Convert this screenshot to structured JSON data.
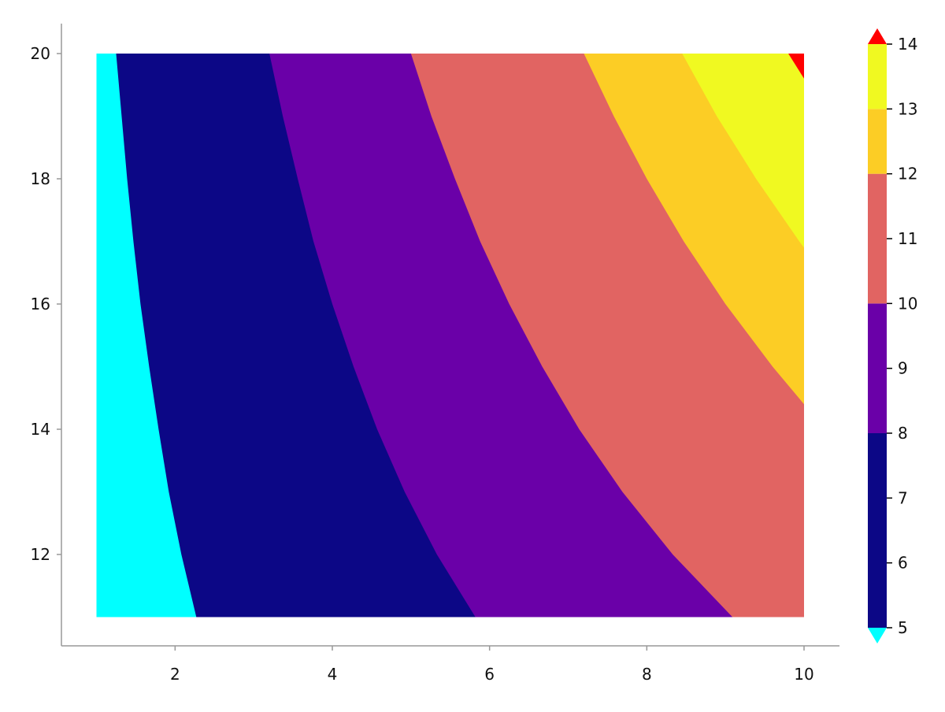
{
  "chart_data": {
    "type": "contour",
    "title": "",
    "xlabel": "",
    "ylabel": "",
    "xlim": [
      1,
      10
    ],
    "ylim": [
      11,
      20
    ],
    "x_ticks": [
      "2",
      "4",
      "6",
      "8",
      "10"
    ],
    "y_ticks": [
      "12",
      "14",
      "16",
      "18",
      "20"
    ],
    "grid": false,
    "levels": [
      5,
      8,
      10,
      12,
      13,
      14
    ],
    "band_colors": {
      "below": "#00ffff",
      "5-8": "#0c0786",
      "8-10": "#6a00a8",
      "10-12": "#e16462",
      "12-13": "#fccd25",
      "13-14": "#f0f921",
      "above": "#ff0000"
    },
    "contours": [
      {
        "level": 5,
        "color": "#0c0786",
        "points": [
          [
            2.27,
            11
          ],
          [
            2.08,
            12
          ],
          [
            1.92,
            13
          ],
          [
            1.79,
            14
          ],
          [
            1.67,
            15
          ],
          [
            1.56,
            16
          ],
          [
            1.47,
            17
          ],
          [
            1.39,
            18
          ],
          [
            1.32,
            19
          ],
          [
            1.25,
            20
          ]
        ]
      },
      {
        "level": 8,
        "color": "#6a00a8",
        "points": [
          [
            5.82,
            11
          ],
          [
            5.33,
            12
          ],
          [
            4.92,
            13
          ],
          [
            4.57,
            14
          ],
          [
            4.27,
            15
          ],
          [
            4.0,
            16
          ],
          [
            3.76,
            17
          ],
          [
            3.56,
            18
          ],
          [
            3.37,
            19
          ],
          [
            3.2,
            20
          ]
        ]
      },
      {
        "level": 10,
        "color": "#e16462",
        "points": [
          [
            9.09,
            11
          ],
          [
            8.33,
            12
          ],
          [
            7.69,
            13
          ],
          [
            7.14,
            14
          ],
          [
            6.67,
            15
          ],
          [
            6.25,
            16
          ],
          [
            5.88,
            17
          ],
          [
            5.56,
            18
          ],
          [
            5.26,
            19
          ],
          [
            5.0,
            20
          ]
        ]
      },
      {
        "level": 12,
        "color": "#fccd25",
        "points": [
          [
            10,
            14.4
          ],
          [
            9.6,
            15
          ],
          [
            9.0,
            16
          ],
          [
            8.47,
            17
          ],
          [
            8.0,
            18
          ],
          [
            7.58,
            19
          ],
          [
            7.2,
            20
          ]
        ]
      },
      {
        "level": 13,
        "color": "#f0f921",
        "points": [
          [
            10,
            16.9
          ],
          [
            9.94,
            17
          ],
          [
            9.39,
            18
          ],
          [
            8.89,
            19
          ],
          [
            8.45,
            20
          ]
        ]
      },
      {
        "level": 14,
        "color": "#ff0000",
        "points": [
          [
            10,
            19.6
          ],
          [
            9.8,
            20
          ]
        ]
      }
    ],
    "colorbar": {
      "range": [
        5,
        14
      ],
      "ticks": [
        "5",
        "6",
        "7",
        "8",
        "9",
        "10",
        "11",
        "12",
        "13",
        "14"
      ],
      "extend_low_color": "#00ffff",
      "extend_high_color": "#ff0000"
    }
  }
}
